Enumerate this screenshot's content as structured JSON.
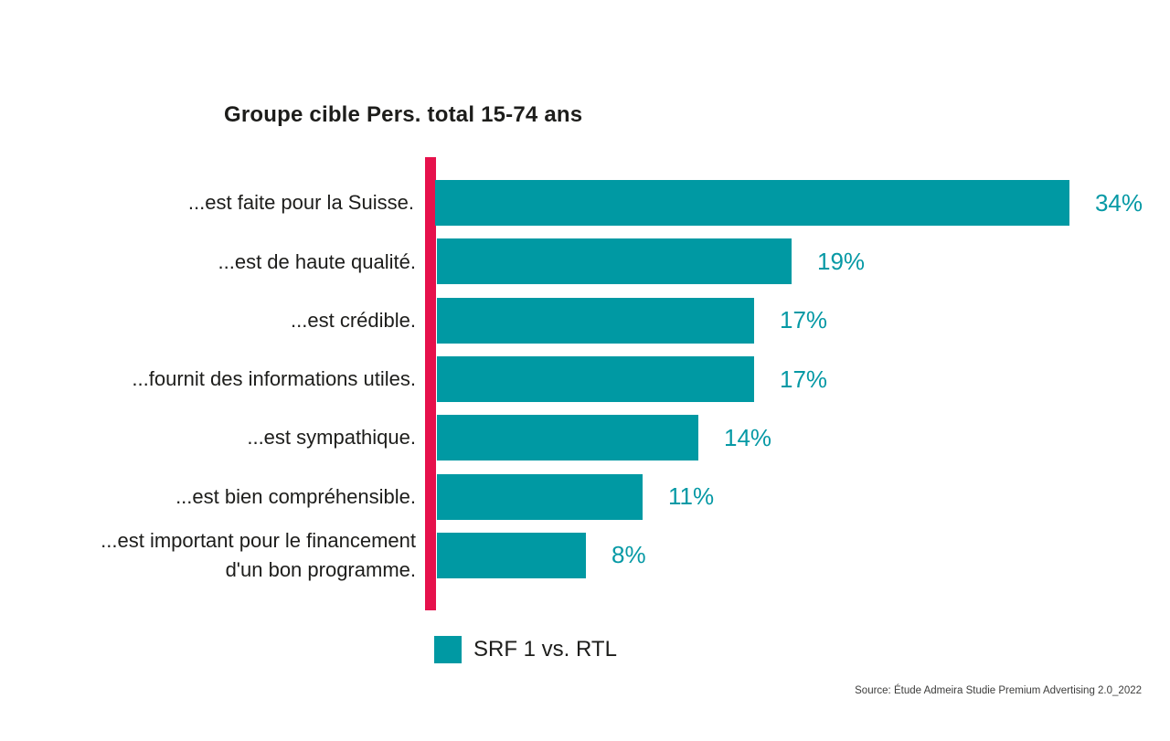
{
  "title": "Groupe cible Pers. total 15-74 ans",
  "chart_data": {
    "type": "bar",
    "orientation": "horizontal",
    "title": "Groupe cible Pers. total 15-74 ans",
    "categories": [
      "...est faite pour la Suisse.",
      "...est de haute qualité.",
      "...est crédible.",
      "...fournit des informations utiles.",
      "...est sympathique.",
      "...est bien compréhensible.",
      "...est important pour le financement d'un bon programme."
    ],
    "values": [
      34,
      19,
      17,
      17,
      14,
      11,
      8
    ],
    "value_labels": [
      "34%",
      "19%",
      "17%",
      "17%",
      "14%",
      "11%",
      "8%"
    ],
    "unit": "%",
    "xlim": [
      0,
      34
    ],
    "grid": false,
    "legend_position": "bottom-left",
    "legend": [
      {
        "label": "SRF 1 vs. RTL",
        "color": "#0099a3"
      }
    ],
    "bar_color": "#0099a3",
    "axis_line_color": "#e6114c",
    "value_text_color": "#0699a5"
  },
  "source": "Source: Étude Admeira Studie Premium Advertising 2.0_2022"
}
